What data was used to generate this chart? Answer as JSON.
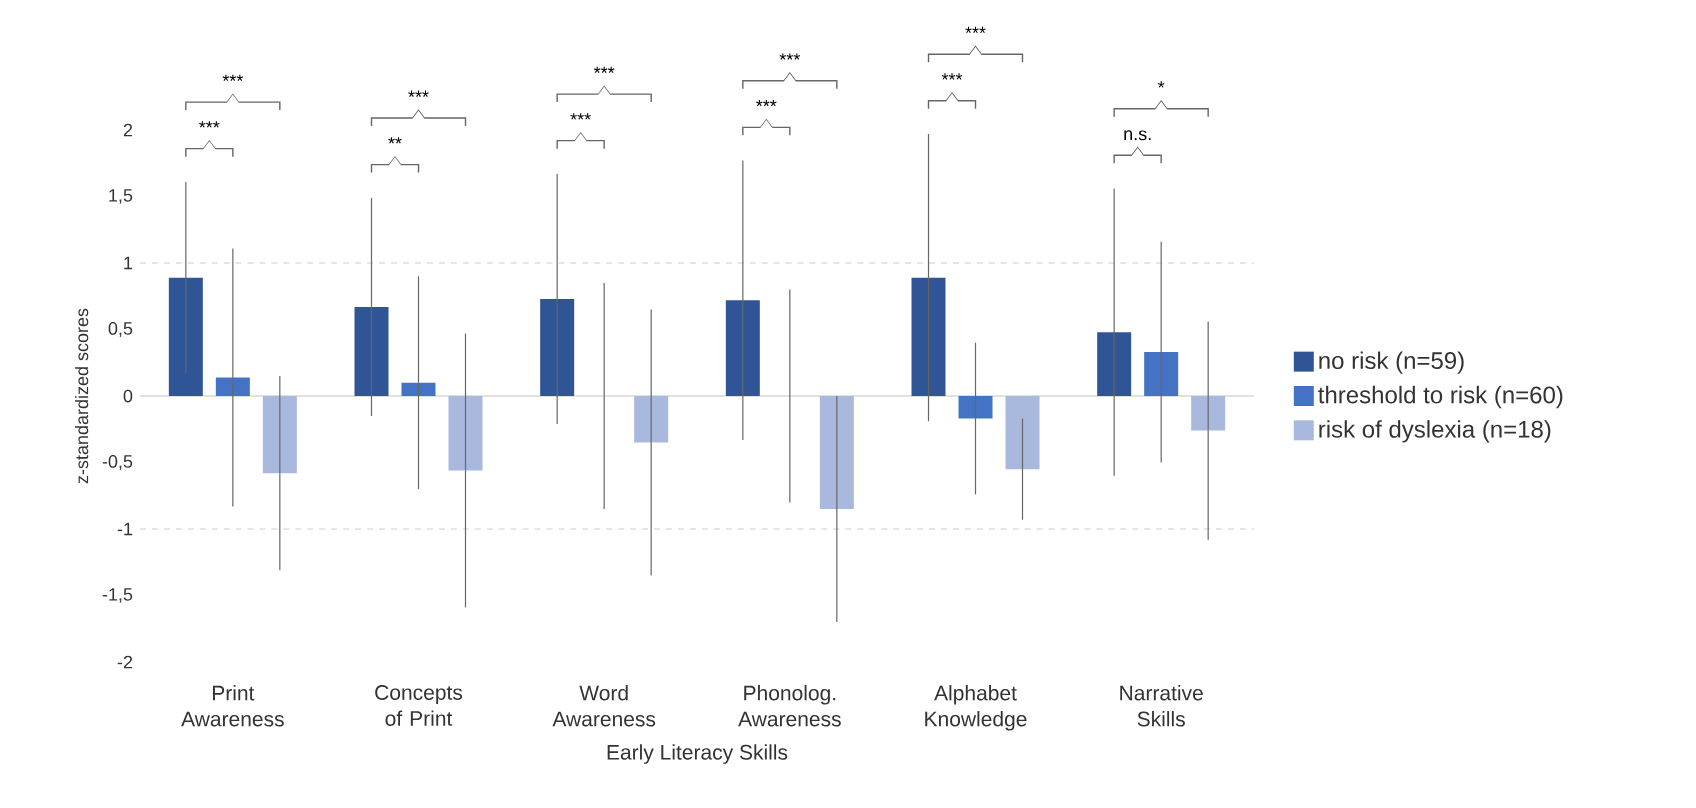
{
  "chart_data": {
    "type": "bar",
    "xlabel": "Early Literacy Skills",
    "ylabel": "z-standardized scores",
    "categories": [
      "Print Awareness",
      "Concepts of Print",
      "Word Awareness",
      "Phonolog. Awareness",
      "Alphabet Knowledge",
      "Narrative Skills"
    ],
    "series": [
      {
        "name": "no risk (n=59)",
        "color": "#2f5597",
        "values": [
          0.89,
          0.67,
          0.73,
          0.72,
          0.89,
          0.48
        ],
        "errors": [
          0.72,
          0.82,
          0.94,
          1.05,
          1.08,
          1.08
        ]
      },
      {
        "name": "threshold to risk (n=60)",
        "color": "#4472c4",
        "values": [
          0.14,
          0.1,
          0.0,
          0.0,
          -0.17,
          0.33
        ],
        "errors": [
          0.97,
          0.8,
          0.85,
          0.8,
          0.57,
          0.83
        ]
      },
      {
        "name": "risk of dyslexia (n=18)",
        "color": "#a9b8dd",
        "values": [
          -0.58,
          -0.56,
          -0.35,
          -0.85,
          -0.55,
          -0.26
        ],
        "errors": [
          0.73,
          1.03,
          1.0,
          0.85,
          0.38,
          0.82
        ]
      }
    ],
    "ylim": [
      -2,
      2
    ],
    "yticks": [
      -2,
      {
        "value": -1.5,
        "label": "-1,5"
      },
      -1,
      {
        "value": -0.5,
        "label": "-0,5"
      },
      0,
      {
        "value": 0.5,
        "label": "0,5"
      },
      1,
      {
        "value": 1.5,
        "label": "1,5"
      },
      2
    ],
    "ref_lines": [
      {
        "axis": "y",
        "value": 1,
        "color": "#bfbfbf",
        "line_style": "dashed"
      },
      {
        "axis": "y",
        "value": -1,
        "color": "#bfbfbf",
        "line_style": "dashed"
      }
    ],
    "annotations": [
      "***",
      "***",
      "***",
      "**",
      "***",
      "***",
      "***",
      "***",
      "***",
      "***",
      "*",
      "n.s."
    ],
    "legend": "right"
  }
}
